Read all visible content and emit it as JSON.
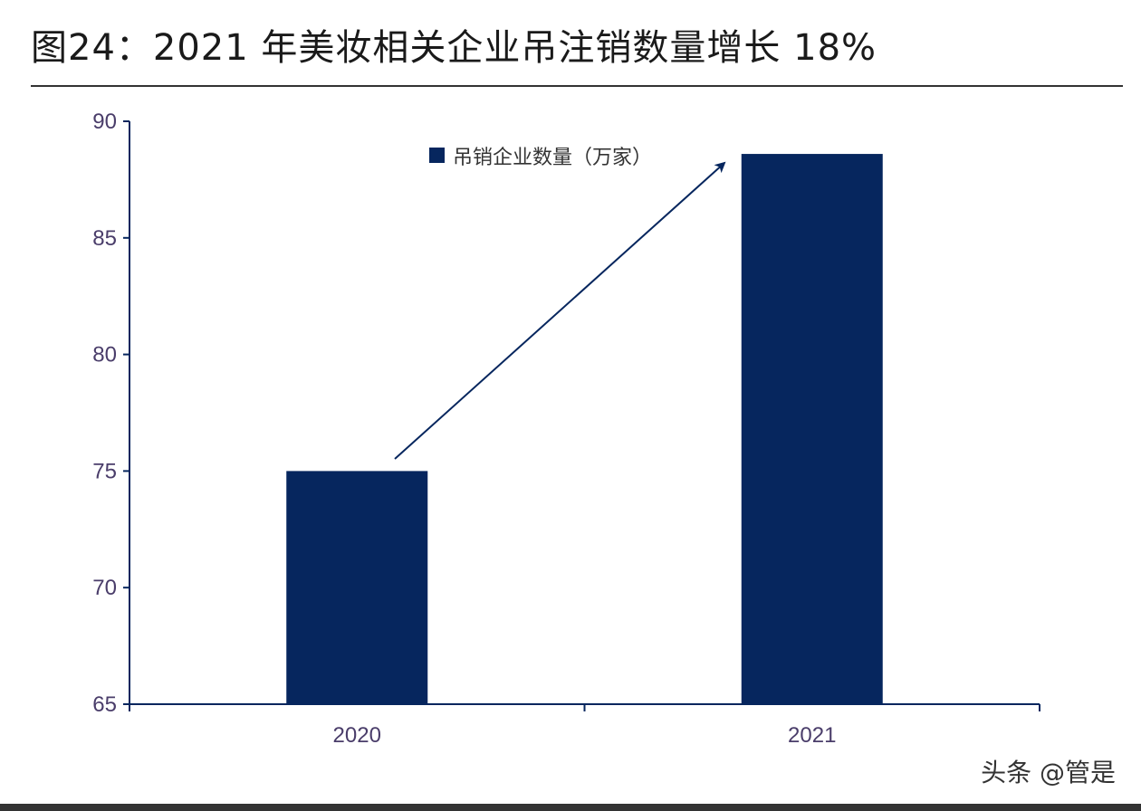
{
  "header": {
    "title": "图24：2021 年美妆相关企业吊注销数量增长 18%"
  },
  "chart_data": {
    "type": "bar",
    "categories": [
      "2020",
      "2021"
    ],
    "series": [
      {
        "name": "吊销企业数量（万家）",
        "values": [
          75,
          88.6
        ],
        "color": "#06265e"
      }
    ],
    "ylim": [
      65,
      90
    ],
    "yticks": [
      65,
      70,
      75,
      80,
      85,
      90
    ],
    "grid": false,
    "legend": "top-center",
    "annotation": "arrow from 2020 bar to 2021 bar"
  },
  "watermark": "头条 @管是"
}
